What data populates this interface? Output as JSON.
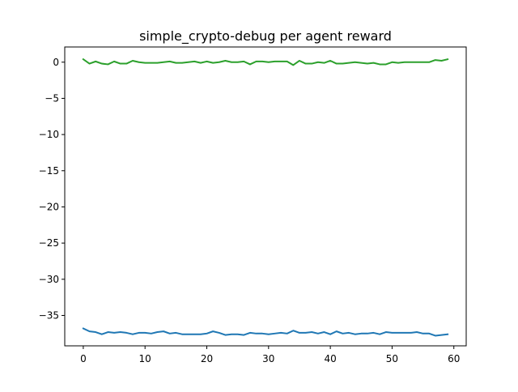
{
  "chart_data": {
    "type": "line",
    "title": "simple_crypto-debug per agent reward",
    "xlabel": "",
    "ylabel": "",
    "xlim": [
      -3,
      62
    ],
    "ylim": [
      -39.2,
      2.1
    ],
    "x_ticks": [
      0,
      10,
      20,
      30,
      40,
      50,
      60
    ],
    "x_tick_labels": [
      "0",
      "10",
      "20",
      "30",
      "40",
      "50",
      "60"
    ],
    "y_ticks": [
      0,
      -5,
      -10,
      -15,
      -20,
      -25,
      -30,
      -35
    ],
    "y_tick_labels": [
      "0",
      "−5",
      "−10",
      "−15",
      "−20",
      "−25",
      "−30",
      "−35"
    ],
    "grid": false,
    "legend": "none",
    "x": [
      0,
      1,
      2,
      3,
      4,
      5,
      6,
      7,
      8,
      9,
      10,
      11,
      12,
      13,
      14,
      15,
      16,
      17,
      18,
      19,
      20,
      21,
      22,
      23,
      24,
      25,
      26,
      27,
      28,
      29,
      30,
      31,
      32,
      33,
      34,
      35,
      36,
      37,
      38,
      39,
      40,
      41,
      42,
      43,
      44,
      45,
      46,
      47,
      48,
      49,
      50,
      51,
      52,
      53,
      54,
      55,
      56,
      57,
      58,
      59
    ],
    "series": [
      {
        "color": "#1f77b4",
        "values": [
          -36.8,
          -37.2,
          -37.3,
          -37.6,
          -37.3,
          -37.4,
          -37.3,
          -37.4,
          -37.6,
          -37.4,
          -37.4,
          -37.5,
          -37.3,
          -37.2,
          -37.5,
          -37.4,
          -37.6,
          -37.6,
          -37.6,
          -37.6,
          -37.5,
          -37.2,
          -37.4,
          -37.7,
          -37.6,
          -37.6,
          -37.7,
          -37.4,
          -37.5,
          -37.5,
          -37.6,
          -37.5,
          -37.4,
          -37.5,
          -37.1,
          -37.4,
          -37.4,
          -37.3,
          -37.5,
          -37.3,
          -37.6,
          -37.2,
          -37.5,
          -37.4,
          -37.6,
          -37.5,
          -37.5,
          -37.4,
          -37.6,
          -37.3,
          -37.4,
          -37.4,
          -37.4,
          -37.4,
          -37.3,
          -37.5,
          -37.5,
          -37.8,
          -37.7,
          -37.6
        ]
      },
      {
        "color": "#2ca02c",
        "values": [
          0.4,
          -0.2,
          0.1,
          -0.2,
          -0.3,
          0.1,
          -0.2,
          -0.2,
          0.2,
          0.0,
          -0.1,
          -0.1,
          -0.1,
          0.0,
          0.1,
          -0.1,
          -0.1,
          0.0,
          0.1,
          -0.1,
          0.1,
          -0.1,
          0.0,
          0.2,
          0.0,
          0.0,
          0.1,
          -0.3,
          0.1,
          0.1,
          0.0,
          0.1,
          0.1,
          0.1,
          -0.4,
          0.2,
          -0.2,
          -0.2,
          0.0,
          -0.1,
          0.2,
          -0.2,
          -0.2,
          -0.1,
          0.0,
          -0.1,
          -0.2,
          -0.1,
          -0.3,
          -0.3,
          0.0,
          -0.1,
          0.0,
          0.0,
          0.0,
          0.0,
          0.0,
          0.3,
          0.2,
          0.4
        ]
      }
    ]
  }
}
